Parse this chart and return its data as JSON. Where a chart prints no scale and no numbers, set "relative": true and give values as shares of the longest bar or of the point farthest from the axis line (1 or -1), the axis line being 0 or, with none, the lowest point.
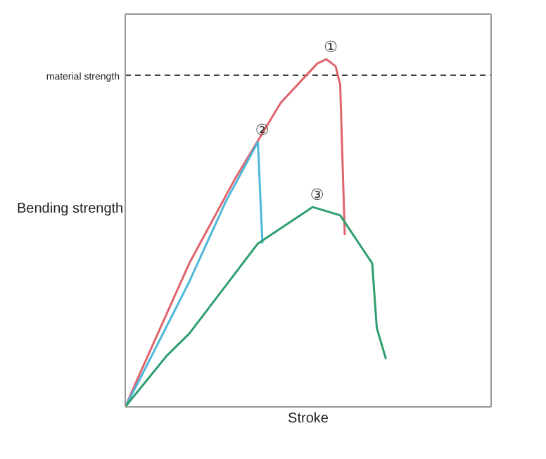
{
  "chart_data": {
    "type": "line",
    "xlabel": "Stroke",
    "ylabel": "Bending strength",
    "relative": true,
    "marker": "none",
    "line_style": "solid",
    "categories": [
      null,
      null,
      null,
      null,
      null,
      null,
      null,
      null,
      null,
      null,
      null,
      null,
      null,
      null,
      null,
      null,
      null,
      null,
      null,
      null,
      null,
      null,
      null,
      null,
      null,
      null,
      null,
      null,
      null,
      null,
      null,
      null,
      null,
      null,
      null,
      null,
      null,
      null,
      null,
      null,
      null,
      null,
      null,
      null,
      null,
      null,
      null,
      null,
      null,
      null,
      null,
      null,
      null,
      null,
      null,
      null,
      null,
      null,
      null,
      null,
      null,
      null,
      null,
      null,
      null,
      null,
      null,
      null,
      null,
      null,
      null,
      null,
      null,
      null,
      null,
      null,
      null,
      null,
      null,
      null,
      null
    ],
    "series": [
      {
        "name": "①",
        "color": "#e0646e",
        "values": [
          0,
          null,
          null,
          0.09,
          null,
          null,
          null,
          null,
          null,
          null,
          null,
          null,
          null,
          null,
          0.413,
          null,
          null,
          null,
          null,
          null,
          null,
          null,
          null,
          null,
          0.656,
          null,
          null,
          null,
          null,
          null,
          null,
          null,
          null,
          null,
          0.875,
          null,
          null,
          null,
          null,
          null,
          null,
          null,
          0.988,
          null,
          1.0,
          null,
          0.98,
          0.927,
          0.494,
          null,
          null,
          null,
          null,
          null,
          null,
          null,
          null,
          null,
          null,
          null,
          null,
          null,
          null,
          null,
          null,
          null,
          null,
          null,
          null,
          null,
          null,
          null,
          null,
          null,
          null,
          null,
          null,
          null,
          null,
          null,
          null
        ]
      },
      {
        "name": "②",
        "color": "#4fb8d8",
        "values": [
          0,
          null,
          null,
          0.075,
          null,
          null,
          null,
          null,
          null,
          null,
          null,
          null,
          null,
          null,
          0.36,
          null,
          null,
          null,
          null,
          null,
          null,
          null,
          0.591,
          null,
          null,
          null,
          null,
          null,
          null,
          0.762,
          0.47,
          null,
          null,
          null,
          null,
          null,
          null,
          null,
          null,
          null,
          null,
          null,
          null,
          null,
          null,
          null,
          null,
          null,
          null,
          null,
          null,
          null,
          null,
          null,
          null,
          null,
          null,
          null,
          null,
          null,
          null,
          null,
          null,
          null,
          null,
          null,
          null,
          null,
          null,
          null,
          null,
          null,
          null,
          null,
          null,
          null,
          null,
          null,
          null,
          null,
          null
        ]
      },
      {
        "name": "③",
        "color": "#2e9e6e",
        "values": [
          0,
          null,
          null,
          null,
          null,
          null,
          null,
          null,
          null,
          0.146,
          null,
          null,
          null,
          null,
          0.211,
          null,
          null,
          null,
          null,
          null,
          null,
          null,
          null,
          null,
          null,
          null,
          null,
          null,
          null,
          0.47,
          null,
          null,
          null,
          null,
          null,
          null,
          null,
          null,
          null,
          null,
          null,
          0.575,
          null,
          null,
          null,
          null,
          null,
          0.551,
          null,
          null,
          null,
          null,
          null,
          null,
          0.413,
          0.227,
          null,
          0.138,
          null,
          null,
          null,
          null,
          null,
          null,
          null,
          null,
          null,
          null,
          null,
          null,
          null,
          null,
          null,
          null,
          null,
          null,
          null,
          null,
          null,
          null,
          null
        ]
      }
    ],
    "ref_lines": [
      {
        "axis": "y",
        "value": 0.954,
        "label": "material strength",
        "color": "#444444",
        "line_style": "dashed"
      }
    ]
  }
}
